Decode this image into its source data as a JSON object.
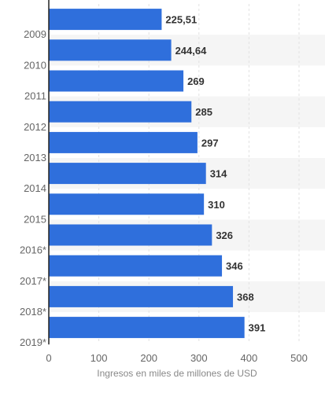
{
  "chart_data": {
    "type": "bar",
    "orientation": "horizontal",
    "categories": [
      "2009",
      "2010",
      "2011",
      "2012",
      "2013",
      "2014",
      "2015",
      "2016*",
      "2017*",
      "2018*",
      "2019*"
    ],
    "values": [
      225.51,
      244.64,
      269,
      285,
      297,
      314,
      310,
      326,
      346,
      368,
      391
    ],
    "value_labels": [
      "225,51",
      "244,64",
      "269",
      "285",
      "297",
      "314",
      "310",
      "326",
      "346",
      "368",
      "391"
    ],
    "xlabel": "Ingresos en miles de millones de USD",
    "ylabel": "",
    "xlim": [
      0,
      500
    ],
    "x_ticks": [
      "0",
      "100",
      "200",
      "300",
      "400",
      "500"
    ],
    "grid": true,
    "bar_color": "#2f6fdc",
    "band_color": "#f5f5f5"
  }
}
